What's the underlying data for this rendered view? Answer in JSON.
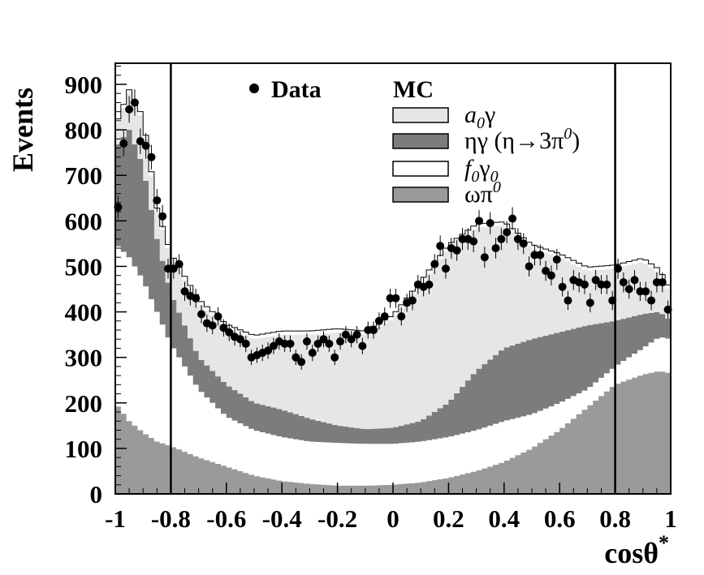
{
  "chart_data": {
    "type": "area",
    "title": "",
    "xlabel": "cosθ*",
    "ylabel": "Events",
    "xlim": [
      -1,
      1
    ],
    "ylim": [
      0,
      960
    ],
    "x_ticks": [
      "-1",
      "-0.8",
      "-0.6",
      "-0.4",
      "-0.2",
      "0",
      "0.2",
      "0.4",
      "0.6",
      "0.8",
      "1"
    ],
    "y_ticks": [
      "0",
      "100",
      "200",
      "300",
      "400",
      "500",
      "600",
      "700",
      "800",
      "900"
    ],
    "cut_lines": [
      -0.8,
      0.8
    ],
    "legend": {
      "data_label": "Data",
      "mc_header": "MC"
    },
    "stack_order": [
      "ωπ0",
      "f0γ0",
      "ηγ(η→3π0)",
      "a0γ"
    ],
    "stack_colors": {
      "ωπ0": "#9a9a9a",
      "f0γ0": "#ffffff",
      "ηγ(η→3π0)": "#7c7c7c",
      "a0γ": "#e6e6e6"
    },
    "cumulative_levels": {
      "x": [
        -1.0,
        -0.95,
        -0.9,
        -0.85,
        -0.8,
        -0.7,
        -0.6,
        -0.5,
        -0.4,
        -0.3,
        -0.2,
        -0.1,
        0.0,
        0.1,
        0.2,
        0.3,
        0.4,
        0.5,
        0.6,
        0.7,
        0.8,
        0.9,
        0.96,
        1.0
      ],
      "omega_pi0": [
        200,
        160,
        135,
        115,
        105,
        80,
        60,
        40,
        28,
        22,
        18,
        18,
        20,
        25,
        35,
        50,
        70,
        100,
        140,
        190,
        240,
        262,
        270,
        265
      ],
      "f0_gamma0": [
        550,
        520,
        470,
        400,
        330,
        230,
        170,
        140,
        125,
        115,
        112,
        110,
        110,
        115,
        125,
        140,
        160,
        175,
        200,
        230,
        280,
        320,
        345,
        340
      ],
      "eta_gamma": [
        760,
        800,
        720,
        560,
        440,
        300,
        240,
        200,
        185,
        165,
        150,
        142,
        145,
        160,
        200,
        270,
        320,
        340,
        355,
        370,
        380,
        395,
        400,
        380
      ],
      "a0_gamma": [
        800,
        880,
        820,
        620,
        520,
        420,
        365,
        340,
        350,
        350,
        355,
        350,
        385,
        460,
        540,
        585,
        590,
        540,
        520,
        490,
        495,
        510,
        485,
        440
      ]
    },
    "data_points": {
      "x": [
        -0.99,
        -0.97,
        -0.95,
        -0.93,
        -0.91,
        -0.89,
        -0.87,
        -0.85,
        -0.83,
        -0.81,
        -0.79,
        -0.77,
        -0.75,
        -0.73,
        -0.71,
        -0.69,
        -0.67,
        -0.65,
        -0.63,
        -0.61,
        -0.59,
        -0.57,
        -0.55,
        -0.53,
        -0.51,
        -0.49,
        -0.47,
        -0.45,
        -0.43,
        -0.41,
        -0.39,
        -0.37,
        -0.35,
        -0.33,
        -0.31,
        -0.29,
        -0.27,
        -0.25,
        -0.23,
        -0.21,
        -0.19,
        -0.17,
        -0.15,
        -0.13,
        -0.11,
        -0.09,
        -0.07,
        -0.05,
        -0.03,
        -0.01,
        0.01,
        0.03,
        0.05,
        0.07,
        0.09,
        0.11,
        0.13,
        0.15,
        0.17,
        0.19,
        0.21,
        0.23,
        0.25,
        0.27,
        0.29,
        0.31,
        0.33,
        0.35,
        0.37,
        0.39,
        0.41,
        0.43,
        0.45,
        0.47,
        0.49,
        0.51,
        0.53,
        0.55,
        0.57,
        0.59,
        0.61,
        0.63,
        0.65,
        0.67,
        0.69,
        0.71,
        0.73,
        0.75,
        0.77,
        0.79,
        0.81,
        0.83,
        0.85,
        0.87,
        0.89,
        0.91,
        0.93,
        0.95,
        0.97,
        0.99
      ],
      "y": [
        630,
        770,
        845,
        860,
        775,
        765,
        740,
        645,
        610,
        495,
        495,
        505,
        445,
        435,
        430,
        395,
        375,
        370,
        390,
        365,
        355,
        345,
        340,
        330,
        300,
        305,
        310,
        315,
        325,
        335,
        330,
        330,
        300,
        290,
        335,
        310,
        330,
        340,
        330,
        300,
        335,
        350,
        340,
        350,
        325,
        360,
        360,
        380,
        390,
        430,
        430,
        390,
        420,
        425,
        460,
        455,
        460,
        505,
        545,
        495,
        540,
        535,
        560,
        560,
        555,
        600,
        520,
        595,
        540,
        560,
        575,
        605,
        560,
        550,
        500,
        525,
        525,
        490,
        480,
        515,
        455,
        425,
        470,
        465,
        460,
        420,
        470,
        460,
        460,
        425,
        495,
        465,
        450,
        470,
        445,
        445,
        425,
        465,
        465,
        405
      ],
      "errors": [
        25,
        28,
        29,
        29,
        28,
        28,
        27,
        25,
        25,
        22,
        22,
        22,
        21,
        21,
        21,
        20,
        19,
        19,
        20,
        19,
        19,
        19,
        18,
        18,
        17,
        17,
        18,
        18,
        18,
        18,
        18,
        18,
        17,
        17,
        18,
        18,
        18,
        18,
        18,
        17,
        18,
        19,
        18,
        19,
        18,
        19,
        19,
        19,
        20,
        21,
        21,
        20,
        20,
        21,
        21,
        21,
        21,
        22,
        23,
        22,
        23,
        23,
        24,
        24,
        24,
        24,
        23,
        24,
        23,
        24,
        24,
        25,
        24,
        23,
        22,
        23,
        23,
        22,
        22,
        23,
        21,
        21,
        22,
        22,
        21,
        21,
        22,
        21,
        21,
        21,
        22,
        22,
        21,
        22,
        21,
        21,
        21,
        22,
        22,
        20
      ]
    },
    "legend_entries": [
      {
        "key": "a0γ",
        "color": "#e6e6e6",
        "main": "a",
        "sub": "0",
        "after": "γ"
      },
      {
        "key": "ηγ(η→3π0)",
        "color": "#7c7c7c",
        "main": "ηγ (η→3π",
        "sup": "0",
        "after": ")"
      },
      {
        "key": "f0γ0",
        "color": "#ffffff",
        "main": "f",
        "sub": "0",
        "after": "γ",
        "sub2": "0"
      },
      {
        "key": "ωπ0",
        "color": "#9a9a9a",
        "main": "ωπ",
        "sup": "0"
      }
    ]
  }
}
